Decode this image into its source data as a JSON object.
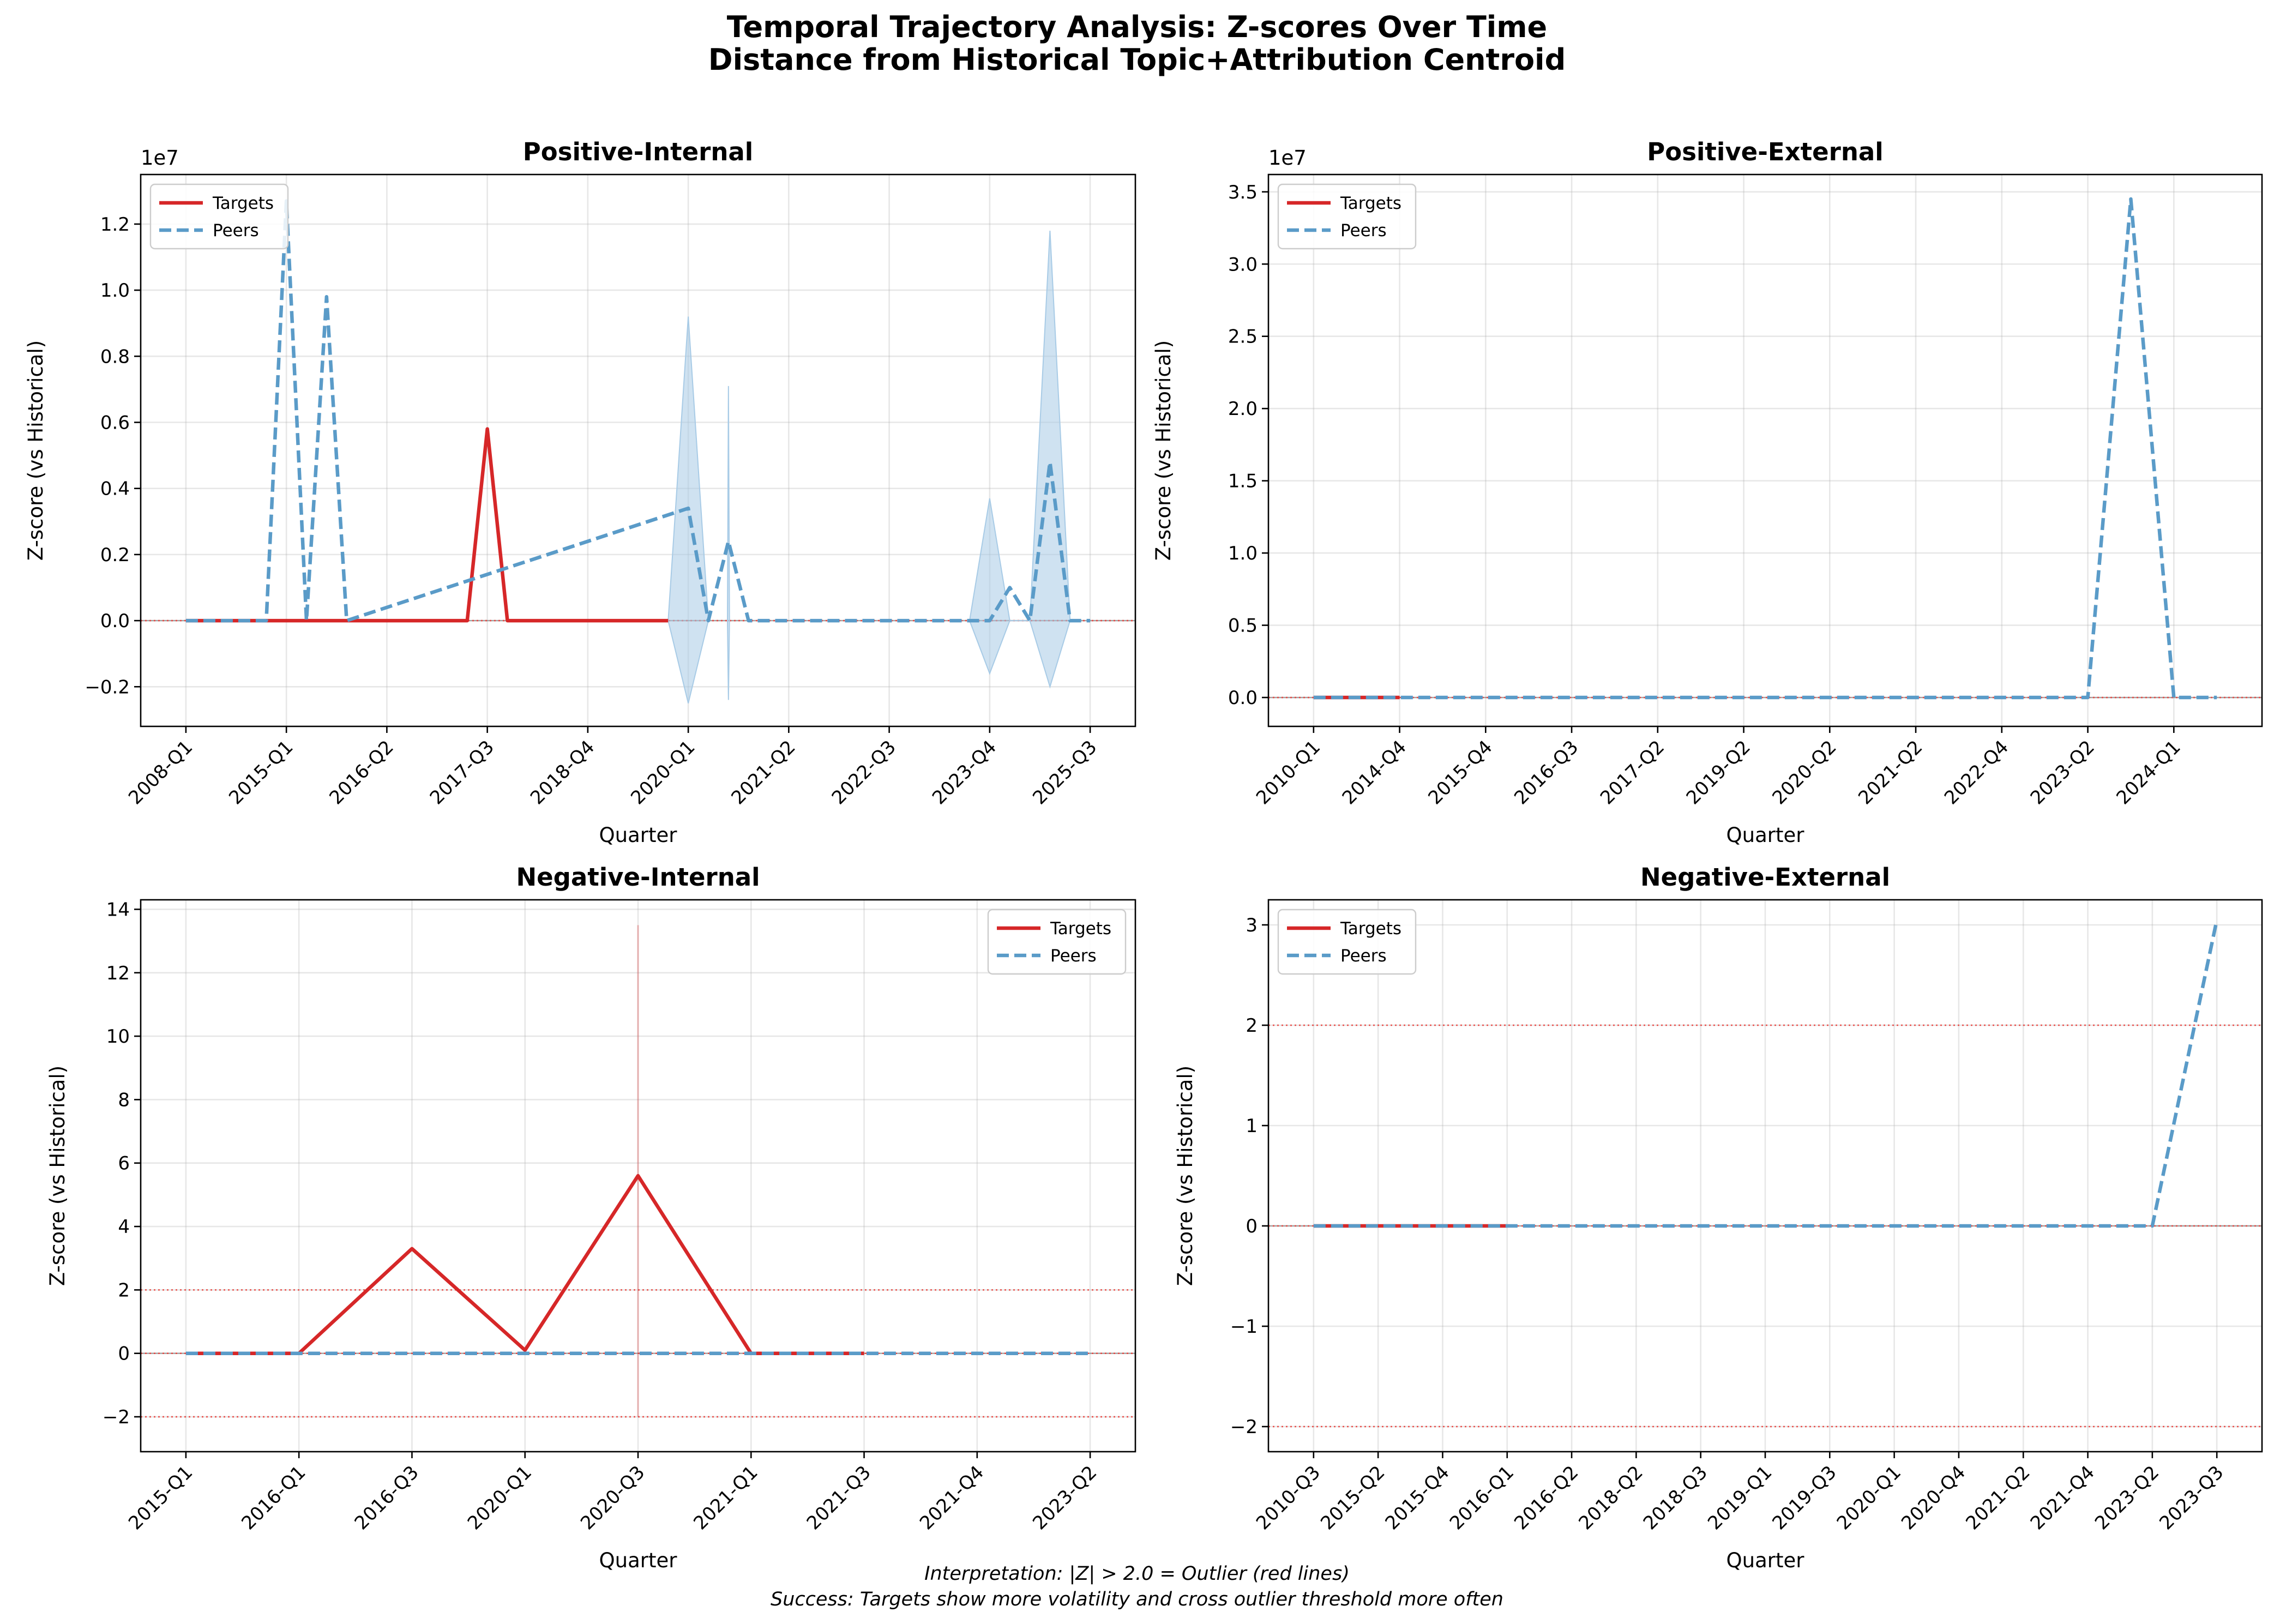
{
  "figure": {
    "title_line1": "Temporal Trajectory Analysis: Z-scores Over Time",
    "title_line2": "Distance from Historical Topic+Attribution Centroid",
    "footer_line1": "Interpretation: |Z| > 2.0 = Outlier (red lines)",
    "footer_line2": "Success: Targets show more volatility and cross outlier threshold more often"
  },
  "colors": {
    "targets": "#d62728",
    "peers": "#5a9bc8",
    "band": "#a8cbe6",
    "threshold": "#e8413c"
  },
  "chart_data": [
    {
      "type": "line",
      "title": "Positive-Internal",
      "xlabel": "Quarter",
      "ylabel": "Z-score (vs Historical)",
      "y_offset_label": "1e7",
      "y_scale": 10000000,
      "ylim": [
        -0.32,
        1.35
      ],
      "yticks": [
        -0.2,
        0.0,
        0.2,
        0.4,
        0.6,
        0.8,
        1.0,
        1.2
      ],
      "ytick_labels": [
        "−0.2",
        "0.0",
        "0.2",
        "0.4",
        "0.6",
        "0.8",
        "1.0",
        "1.2"
      ],
      "n_points": 46,
      "xtick_index": [
        0,
        5,
        10,
        15,
        20,
        25,
        30,
        35,
        40,
        45
      ],
      "xtick_labels": [
        "2008-Q1",
        "2015-Q1",
        "2016-Q2",
        "2017-Q3",
        "2018-Q4",
        "2020-Q1",
        "2021-Q2",
        "2022-Q3",
        "2023-Q4",
        "2025-Q3"
      ],
      "legend": "top-left",
      "thresholds": [],
      "series": [
        {
          "name": "Targets",
          "x": [
            0,
            14,
            15,
            16,
            24
          ],
          "y": [
            0,
            0,
            0.58,
            0,
            0
          ]
        },
        {
          "name": "Peers",
          "x": [
            0,
            4,
            5,
            6,
            7,
            8,
            25,
            26,
            27,
            28,
            29,
            40,
            41,
            42,
            43,
            44,
            45
          ],
          "y": [
            0,
            0,
            1.27,
            0,
            0.98,
            0,
            0.34,
            0,
            0.24,
            0,
            0,
            0,
            0.1,
            0,
            0.48,
            0,
            0
          ]
        }
      ],
      "bands": [
        {
          "x": [
            24,
            25,
            26
          ],
          "lower": [
            0,
            -0.25,
            0
          ],
          "upper": [
            0,
            0.92,
            0
          ]
        },
        {
          "x": [
            26.95,
            27,
            27.05
          ],
          "lower": [
            0,
            -0.24,
            0
          ],
          "upper": [
            0,
            0.71,
            0
          ]
        },
        {
          "x": [
            39,
            40,
            41,
            42
          ],
          "lower": [
            0,
            -0.16,
            0,
            0
          ],
          "upper": [
            0,
            0.37,
            0,
            0
          ]
        },
        {
          "x": [
            42,
            43,
            44
          ],
          "lower": [
            0,
            -0.2,
            0
          ],
          "upper": [
            0,
            1.18,
            0
          ]
        }
      ]
    },
    {
      "type": "line",
      "title": "Positive-External",
      "xlabel": "Quarter",
      "ylabel": "Z-score (vs Historical)",
      "y_offset_label": "1e7",
      "y_scale": 10000000,
      "ylim": [
        -0.2,
        3.62
      ],
      "yticks": [
        0.0,
        0.5,
        1.0,
        1.5,
        2.0,
        2.5,
        3.0,
        3.5
      ],
      "ytick_labels": [
        "0.0",
        "0.5",
        "1.0",
        "1.5",
        "2.0",
        "2.5",
        "3.0",
        "3.5"
      ],
      "n_points": 22,
      "xtick_index": [
        0,
        2,
        4,
        6,
        8,
        10,
        12,
        14,
        16,
        18,
        20
      ],
      "xtick_labels": [
        "2010-Q1",
        "2014-Q4",
        "2015-Q4",
        "2016-Q3",
        "2017-Q2",
        "2019-Q2",
        "2020-Q2",
        "2021-Q2",
        "2022-Q4",
        "2023-Q2",
        "2024-Q1"
      ],
      "legend": "top-left",
      "thresholds": [],
      "series": [
        {
          "name": "Targets",
          "x": [
            0,
            2
          ],
          "y": [
            0,
            0
          ]
        },
        {
          "name": "Peers",
          "x": [
            0,
            18,
            19,
            20,
            21
          ],
          "y": [
            0,
            0,
            3.45,
            0,
            0
          ]
        }
      ],
      "bands": []
    },
    {
      "type": "line",
      "title": "Negative-Internal",
      "xlabel": "Quarter",
      "ylabel": "Z-score (vs Historical)",
      "y_offset_label": "",
      "y_scale": 1,
      "ylim": [
        -3.1,
        14.3
      ],
      "yticks": [
        -2,
        0,
        2,
        4,
        6,
        8,
        10,
        12,
        14
      ],
      "ytick_labels": [
        "−2",
        "0",
        "2",
        "4",
        "6",
        "8",
        "10",
        "12",
        "14"
      ],
      "n_points": 9,
      "xtick_index": [
        0,
        1,
        2,
        3,
        4,
        5,
        6,
        7,
        8
      ],
      "xtick_labels": [
        "2015-Q1",
        "2016-Q1",
        "2016-Q3",
        "2020-Q1",
        "2020-Q3",
        "2021-Q1",
        "2021-Q3",
        "2021-Q4",
        "2023-Q2"
      ],
      "legend": "top-right",
      "thresholds": [
        2,
        -2
      ],
      "series": [
        {
          "name": "Targets",
          "x": [
            0,
            1,
            2,
            3,
            4,
            5,
            6
          ],
          "y": [
            0,
            0,
            3.3,
            0.1,
            5.6,
            0,
            0
          ]
        },
        {
          "name": "Peers",
          "x": [
            0,
            1,
            2,
            3,
            4,
            5,
            6,
            7,
            8
          ],
          "y": [
            0,
            0,
            0,
            0,
            0,
            0,
            0,
            0,
            0
          ]
        }
      ],
      "bands": [],
      "target_band_line": {
        "x": 4,
        "lower": -2.0,
        "upper": 13.5
      }
    },
    {
      "type": "line",
      "title": "Negative-External",
      "xlabel": "Quarter",
      "ylabel": "Z-score (vs Historical)",
      "y_offset_label": "",
      "y_scale": 1,
      "ylim": [
        -2.25,
        3.25
      ],
      "yticks": [
        -2,
        -1,
        0,
        1,
        2,
        3
      ],
      "ytick_labels": [
        "−2",
        "−1",
        "0",
        "1",
        "2",
        "3"
      ],
      "n_points": 15,
      "xtick_index": [
        0,
        1,
        2,
        3,
        4,
        5,
        6,
        7,
        8,
        9,
        10,
        11,
        12,
        13,
        14
      ],
      "xtick_labels": [
        "2010-Q3",
        "2015-Q2",
        "2015-Q4",
        "2016-Q1",
        "2016-Q2",
        "2018-Q2",
        "2018-Q3",
        "2019-Q1",
        "2019-Q3",
        "2020-Q1",
        "2020-Q4",
        "2021-Q2",
        "2021-Q4",
        "2023-Q2",
        "2023-Q3"
      ],
      "legend": "top-left",
      "thresholds": [
        2,
        -2
      ],
      "series": [
        {
          "name": "Targets",
          "x": [
            0,
            3
          ],
          "y": [
            0,
            0
          ]
        },
        {
          "name": "Peers",
          "x": [
            0,
            13,
            14
          ],
          "y": [
            0,
            0,
            3.05
          ]
        }
      ],
      "bands": []
    }
  ]
}
